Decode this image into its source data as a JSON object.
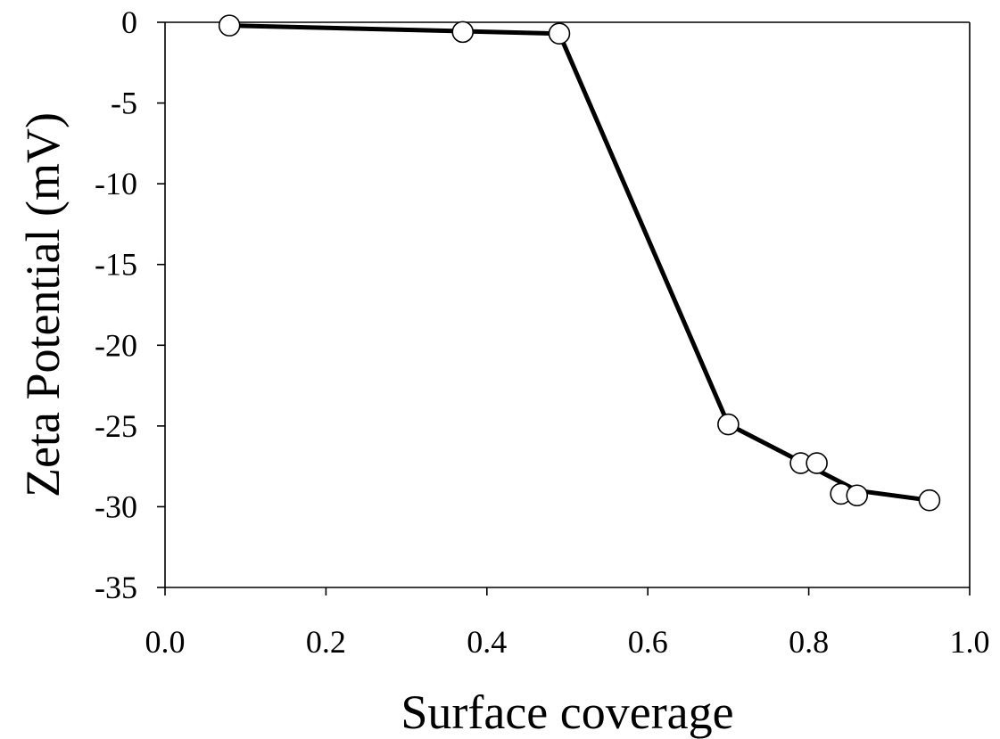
{
  "chart_data": {
    "type": "line",
    "title": "",
    "xlabel": "Surface coverage",
    "ylabel": "Zeta Potential (mV)",
    "xlim": [
      0.0,
      1.0
    ],
    "ylim": [
      -35,
      0
    ],
    "xticks": [
      0.0,
      0.2,
      0.4,
      0.6,
      0.8,
      1.0
    ],
    "xtick_labels": [
      "0.0",
      "0.2",
      "0.4",
      "0.6",
      "0.8",
      "1.0"
    ],
    "yticks": [
      0,
      -5,
      -10,
      -15,
      -20,
      -25,
      -30,
      -35
    ],
    "ytick_labels": [
      "0",
      "-5",
      "-10",
      "-15",
      "-20",
      "-25",
      "-30",
      "-35"
    ],
    "grid": false,
    "series": [
      {
        "marker": "open-circle",
        "x": [
          0.08,
          0.37,
          0.49,
          0.7,
          0.79,
          0.81,
          0.84,
          0.86,
          0.95
        ],
        "y": [
          -0.2,
          -0.6,
          -0.7,
          -24.9,
          -27.3,
          -27.3,
          -29.2,
          -29.3,
          -29.6
        ]
      },
      {
        "style": "solid-line",
        "x": [
          0.08,
          0.49,
          0.7,
          0.86,
          0.95
        ],
        "y": [
          -0.2,
          -0.7,
          -24.9,
          -29.0,
          -29.6
        ]
      }
    ],
    "colors": {
      "line": "#000000",
      "marker_fill": "#ffffff",
      "marker_edge": "#000000"
    }
  }
}
